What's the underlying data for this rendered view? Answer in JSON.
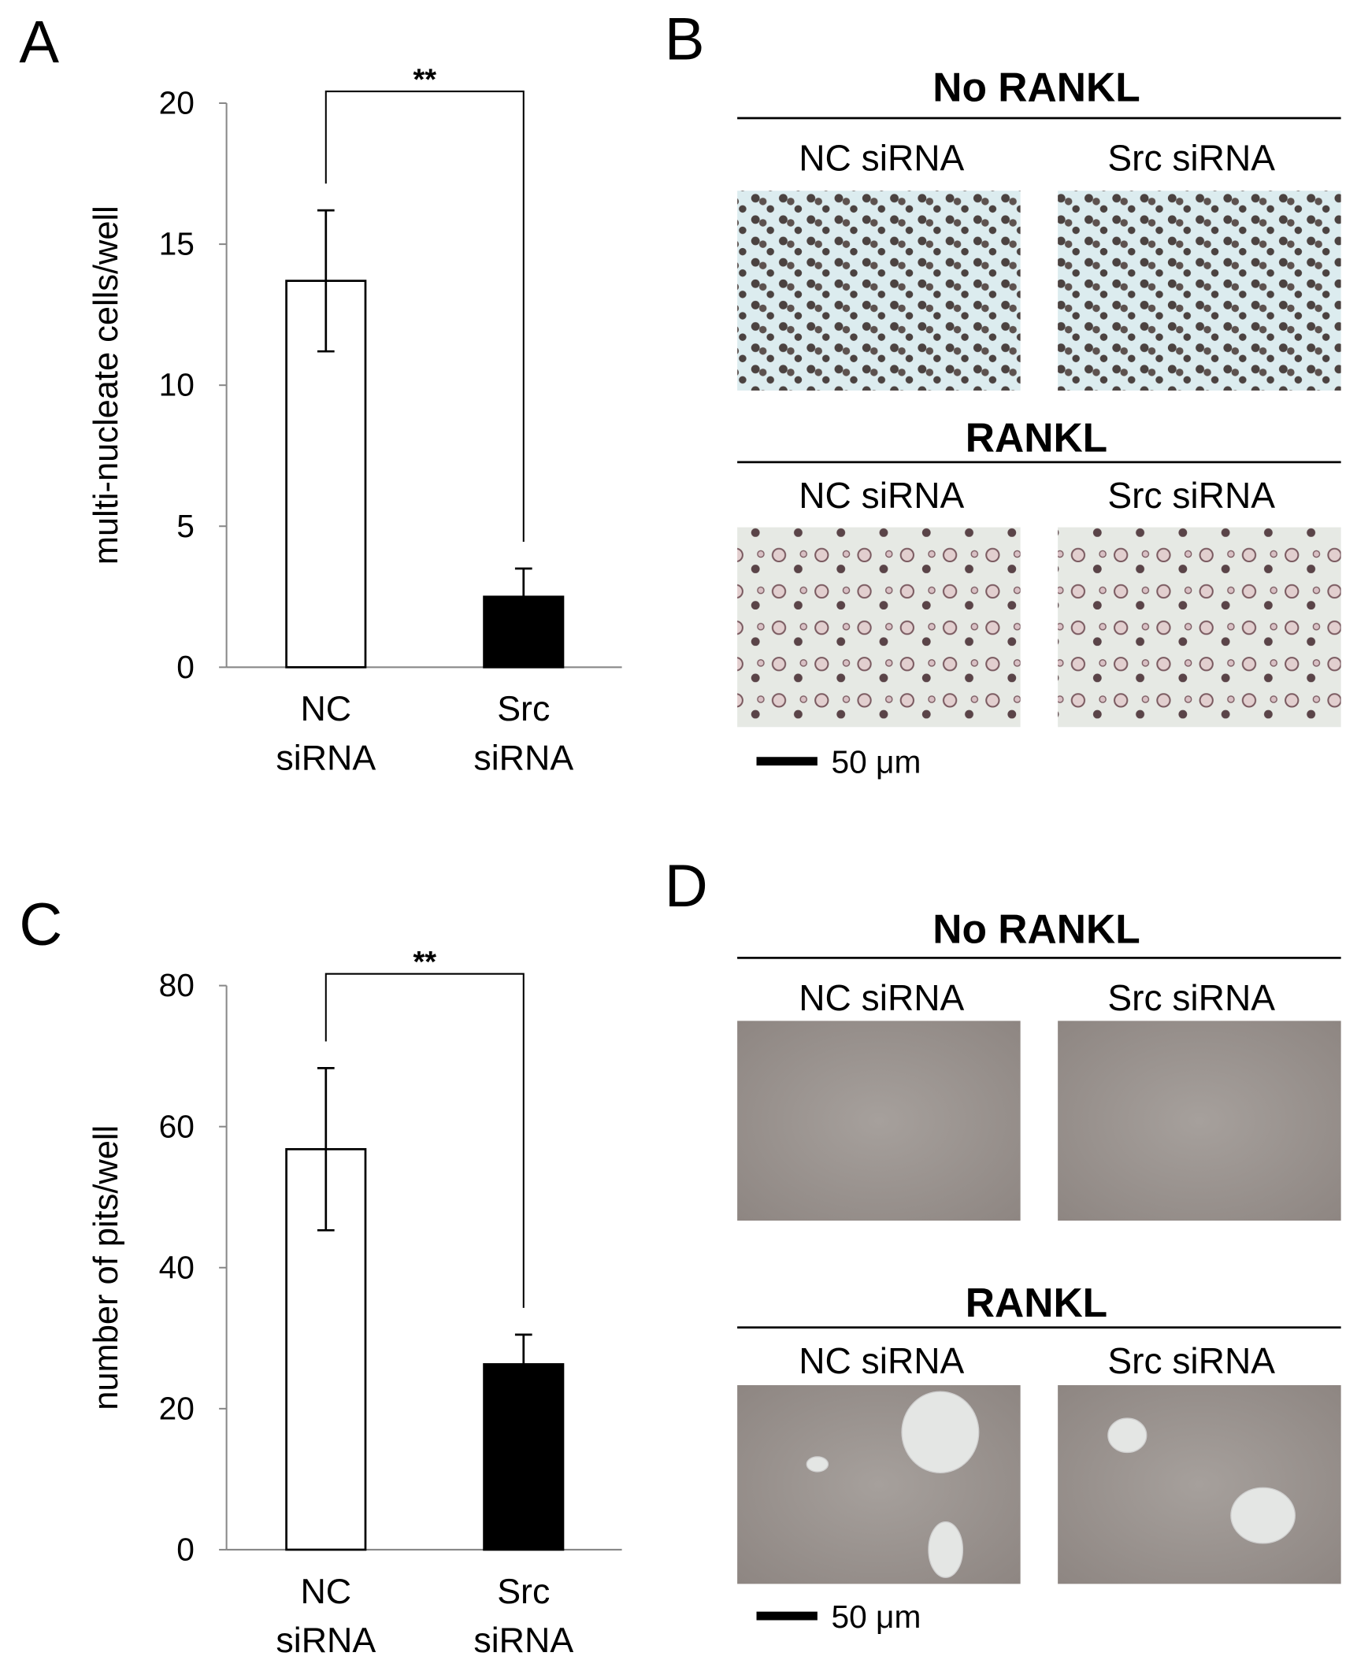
{
  "chart_data": [
    {
      "type": "bar",
      "panel": "A",
      "ylabel": "multi-nucleate cells/well",
      "categories": [
        "NC siRNA",
        "Src siRNA"
      ],
      "values": [
        13.7,
        2.5
      ],
      "errors": [
        2.5,
        1.0
      ],
      "colors": [
        "#ffffff",
        "#000000"
      ],
      "ylim": [
        0,
        20
      ],
      "yticks": [
        0,
        5,
        10,
        15,
        20
      ],
      "significance": "**"
    },
    {
      "type": "bar",
      "panel": "C",
      "ylabel": "number of pits/well",
      "categories": [
        "NC siRNA",
        "Src siRNA"
      ],
      "values": [
        56.8,
        26.3
      ],
      "errors": [
        11.5,
        4.2
      ],
      "colors": [
        "#ffffff",
        "#000000"
      ],
      "ylim": [
        0,
        80
      ],
      "yticks": [
        0,
        20,
        40,
        60,
        80
      ],
      "significance": "**"
    }
  ],
  "image_panels": [
    {
      "panel": "B",
      "groups": [
        {
          "title": "No RANKL",
          "columns": [
            "NC siRNA",
            "Src siRNA"
          ]
        },
        {
          "title": "RANKL",
          "columns": [
            "NC siRNA",
            "Src siRNA"
          ]
        }
      ],
      "scale_bar": "50 μm"
    },
    {
      "panel": "D",
      "groups": [
        {
          "title": "No RANKL",
          "columns": [
            "NC siRNA",
            "Src siRNA"
          ]
        },
        {
          "title": "RANKL",
          "columns": [
            "NC siRNA",
            "Src siRNA"
          ]
        }
      ],
      "scale_bar": "50 μm"
    }
  ]
}
